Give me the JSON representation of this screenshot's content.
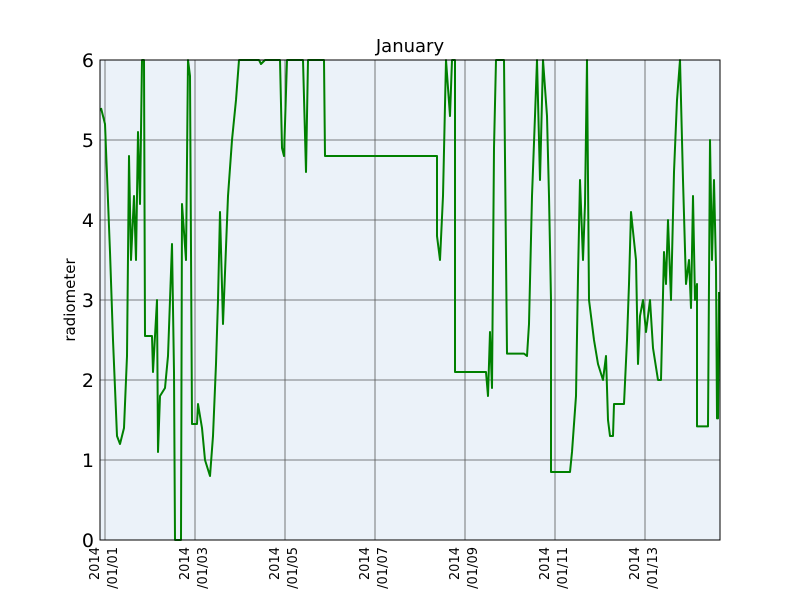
{
  "chart_data": {
    "type": "line",
    "title": "January",
    "y_label": "radiometer",
    "color": "#008000",
    "background": "#ebf2f9",
    "grid": true,
    "xlim": [
      "2013-12-31T21:20",
      "2014-01-14T16:00"
    ],
    "ylim": [
      0,
      6
    ],
    "yticks": [
      0,
      1,
      2,
      3,
      4,
      5,
      6
    ],
    "xticks": [
      {
        "value": "2014-01-01T00:00",
        "label": "2014\n/01/01"
      },
      {
        "value": "2014-01-03T00:00",
        "label": "2014\n/01/03"
      },
      {
        "value": "2014-01-05T00:00",
        "label": "2014\n/01/05"
      },
      {
        "value": "2014-01-07T00:00",
        "label": "2014\n/01/07"
      },
      {
        "value": "2014-01-09T00:00",
        "label": "2014\n/01/09"
      },
      {
        "value": "2014-01-11T00:00",
        "label": "2014\n/01/11"
      },
      {
        "value": "2014-01-13T00:00",
        "label": "2014\n/01/13"
      }
    ],
    "x": [
      "2013-12-31T21:52",
      "2014-01-01T00:00",
      "2014-01-01T02:40",
      "2014-01-01T04:16",
      "2014-01-01T06:24",
      "2014-01-01T08:00",
      "2014-01-01T10:08",
      "2014-01-01T11:44",
      "2014-01-01T12:48",
      "2014-01-01T13:52",
      "2014-01-01T15:28",
      "2014-01-01T16:32",
      "2014-01-01T17:36",
      "2014-01-01T18:40",
      "2014-01-01T19:44",
      "2014-01-01T20:48",
      "2014-01-01T21:20",
      "2014-01-02T01:04",
      "2014-01-02T01:36",
      "2014-01-02T03:44",
      "2014-01-02T04:16",
      "2014-01-02T05:20",
      "2014-01-02T08:00",
      "2014-01-02T09:36",
      "2014-01-02T11:44",
      "2014-01-02T12:48",
      "2014-01-02T13:20",
      "2014-01-02T16:32",
      "2014-01-02T17:04",
      "2014-01-02T19:12",
      "2014-01-02T20:16",
      "2014-01-02T21:20",
      "2014-01-02T22:24",
      "2014-01-03T01:04",
      "2014-01-03T01:36",
      "2014-01-03T03:44",
      "2014-01-03T05:20",
      "2014-01-03T08:00",
      "2014-01-03T09:36",
      "2014-01-03T11:12",
      "2014-01-03T12:16",
      "2014-01-03T13:20",
      "2014-01-03T14:56",
      "2014-01-03T17:36",
      "2014-01-03T19:44",
      "2014-01-03T21:52",
      "2014-01-03T23:28",
      "2014-01-04T10:08",
      "2014-01-04T11:12",
      "2014-01-04T13:20",
      "2014-01-04T21:20",
      "2014-01-04T22:24",
      "2014-01-04T23:28",
      "2014-01-05T01:04",
      "2014-01-05T09:36",
      "2014-01-05T11:12",
      "2014-01-05T12:16",
      "2014-01-05T20:48",
      "2014-01-05T21:20",
      "2014-01-08T09:04",
      "2014-01-08T09:04",
      "2014-01-08T10:40",
      "2014-01-08T12:16",
      "2014-01-08T13:52",
      "2014-01-08T16:00",
      "2014-01-08T17:04",
      "2014-01-08T18:40",
      "2014-01-08T18:40",
      "2014-01-09T11:12",
      "2014-01-09T12:16",
      "2014-01-09T13:20",
      "2014-01-09T14:24",
      "2014-01-09T15:28",
      "2014-01-09T16:32",
      "2014-01-09T20:48",
      "2014-01-09T22:24",
      "2014-01-10T07:28",
      "2014-01-10T09:04",
      "2014-01-10T10:08",
      "2014-01-10T11:44",
      "2014-01-10T13:20",
      "2014-01-10T14:24",
      "2014-01-10T16:00",
      "2014-01-10T17:36",
      "2014-01-10T19:44",
      "2014-01-10T20:48",
      "2014-01-10T21:52",
      "2014-01-10T21:52",
      "2014-01-11T08:00",
      "2014-01-11T09:04",
      "2014-01-11T11:12",
      "2014-01-11T12:16",
      "2014-01-11T13:20",
      "2014-01-11T14:56",
      "2014-01-11T16:00",
      "2014-01-11T17:04",
      "2014-01-11T18:08",
      "2014-01-11T20:48",
      "2014-01-11T22:56",
      "2014-01-12T01:36",
      "2014-01-12T03:12",
      "2014-01-12T04:16",
      "2014-01-12T05:20",
      "2014-01-12T06:56",
      "2014-01-12T07:28",
      "2014-01-12T12:48",
      "2014-01-12T14:24",
      "2014-01-12T15:28",
      "2014-01-12T16:32",
      "2014-01-12T19:12",
      "2014-01-12T20:16",
      "2014-01-12T21:20",
      "2014-01-12T22:56",
      "2014-01-13T00:32",
      "2014-01-13T02:40",
      "2014-01-13T04:16",
      "2014-01-13T06:56",
      "2014-01-13T08:32",
      "2014-01-13T10:08",
      "2014-01-13T11:12",
      "2014-01-13T12:16",
      "2014-01-13T13:52",
      "2014-01-13T15:28",
      "2014-01-13T17:04",
      "2014-01-13T18:40",
      "2014-01-13T20:16",
      "2014-01-13T21:52",
      "2014-01-13T23:28",
      "2014-01-14T00:32",
      "2014-01-14T01:36",
      "2014-01-14T02:40",
      "2014-01-14T03:44",
      "2014-01-14T03:44",
      "2014-01-14T09:36",
      "2014-01-14T10:40",
      "2014-01-14T11:44",
      "2014-01-14T12:48",
      "2014-01-14T13:52",
      "2014-01-14T14:24",
      "2014-01-14T14:56",
      "2014-01-14T15:28"
    ],
    "values": [
      5.4,
      5.2,
      3.6,
      2.5,
      1.3,
      1.2,
      1.4,
      2.3,
      4.8,
      3.5,
      4.3,
      3.5,
      5.1,
      4.2,
      6,
      6,
      2.55,
      2.55,
      2.1,
      3.0,
      1.1,
      1.8,
      1.9,
      2.3,
      3.7,
      2.1,
      0,
      0,
      4.2,
      3.5,
      6,
      5.8,
      1.45,
      1.45,
      1.7,
      1.4,
      1.0,
      0.8,
      1.3,
      2.2,
      3.0,
      4.1,
      2.7,
      4.3,
      5.0,
      5.5,
      6,
      6,
      5.95,
      6,
      6,
      4.9,
      4.8,
      6,
      6,
      4.6,
      6,
      6,
      4.8,
      4.8,
      3.8,
      3.5,
      4.3,
      6,
      5.3,
      6,
      6,
      2.1,
      2.1,
      1.8,
      2.6,
      1.9,
      4.9,
      6,
      6,
      2.33,
      2.33,
      2.3,
      2.7,
      4.3,
      5.3,
      6,
      4.5,
      6,
      5.3,
      4.3,
      3.0,
      0.85,
      0.85,
      1.1,
      1.8,
      3.3,
      4.5,
      3.5,
      4.2,
      6,
      3.0,
      2.5,
      2.2,
      2.0,
      2.3,
      1.5,
      1.3,
      1.3,
      1.7,
      1.7,
      2.5,
      3.2,
      4.1,
      3.5,
      2.2,
      2.8,
      3.0,
      2.6,
      3.0,
      2.4,
      2.0,
      2.0,
      3.6,
      3.2,
      4.0,
      3.0,
      4.6,
      5.5,
      6,
      4.5,
      3.2,
      3.5,
      2.9,
      4.3,
      3.0,
      3.2,
      1.42,
      1.42,
      5.0,
      3.5,
      4.5,
      3.4,
      1.52,
      1.52,
      3.1
    ]
  }
}
